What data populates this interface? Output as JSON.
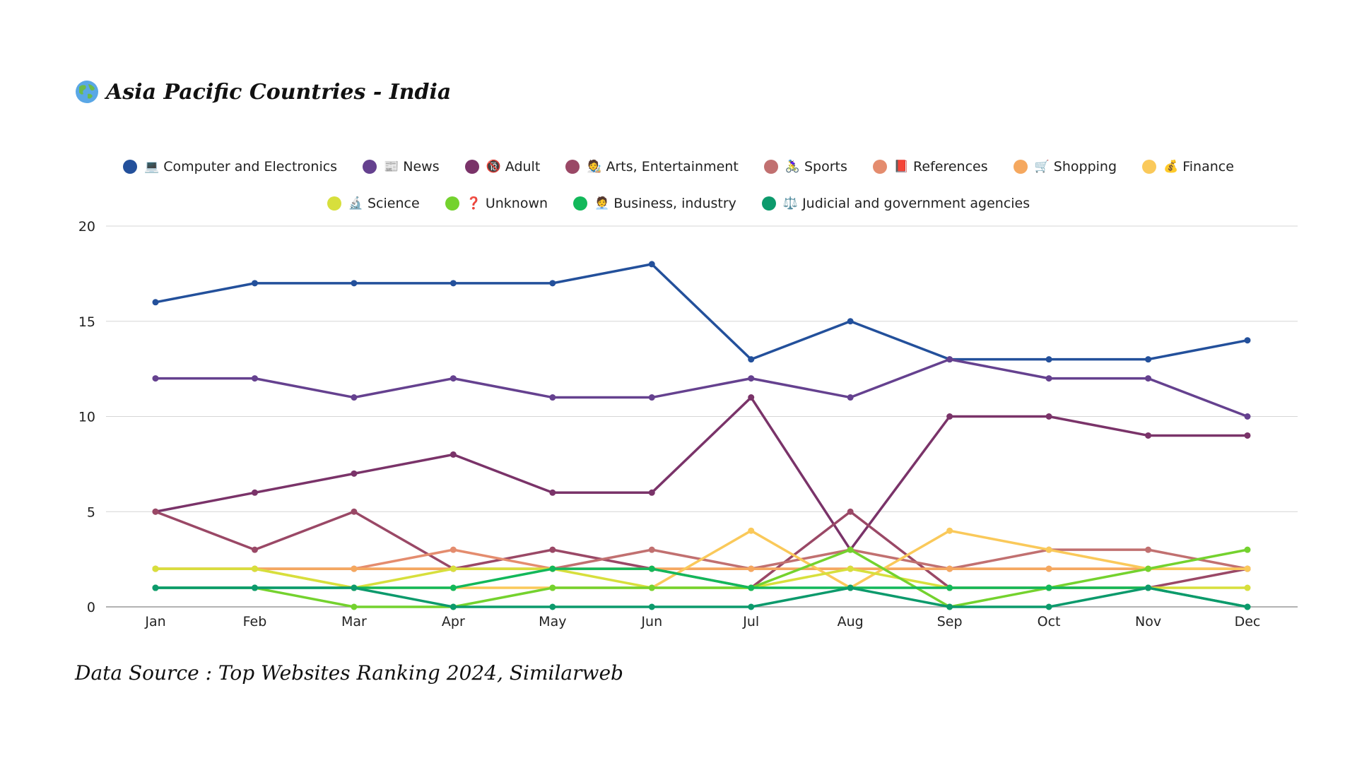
{
  "title": "Asia Pacific Countries - India",
  "source": "Data Source : Top Websites Ranking 2024, Similarweb",
  "chart_data": {
    "type": "line",
    "title": "Asia Pacific Countries - India",
    "categories": [
      "Jan",
      "Feb",
      "Mar",
      "Apr",
      "May",
      "Jun",
      "Jul",
      "Aug",
      "Sep",
      "Oct",
      "Nov",
      "Dec"
    ],
    "ylim": [
      0,
      20
    ],
    "yticks": [
      0,
      5,
      10,
      15,
      20
    ],
    "grid": true,
    "legend_position": "top",
    "series": [
      {
        "name": "Computer and Electronics",
        "icon": "💻",
        "color": "#23509b",
        "values": [
          16,
          17,
          17,
          17,
          17,
          18,
          13,
          15,
          13,
          13,
          13,
          14
        ]
      },
      {
        "name": "News",
        "icon": "📰",
        "color": "#65418f",
        "values": [
          12,
          12,
          11,
          12,
          11,
          11,
          12,
          11,
          13,
          12,
          12,
          10
        ]
      },
      {
        "name": "Adult",
        "icon": "🔞",
        "color": "#7a3369",
        "values": [
          5,
          6,
          7,
          8,
          6,
          6,
          11,
          3,
          10,
          10,
          9,
          9
        ]
      },
      {
        "name": "Arts, Entertainment",
        "icon": "🧑‍🎨",
        "color": "#9a4866",
        "values": [
          5,
          3,
          5,
          2,
          3,
          2,
          1,
          5,
          1,
          1,
          1,
          2
        ]
      },
      {
        "name": "Sports",
        "icon": "🚴‍♀️",
        "color": "#c17070",
        "values": [
          2,
          2,
          2,
          2,
          2,
          3,
          2,
          3,
          2,
          3,
          3,
          2
        ]
      },
      {
        "name": "References",
        "icon": "📕",
        "color": "#e48c6e",
        "values": [
          2,
          2,
          2,
          3,
          2,
          2,
          2,
          2,
          2,
          2,
          2,
          2
        ]
      },
      {
        "name": "Shopping",
        "icon": "🛒",
        "color": "#f5a85f",
        "values": [
          2,
          2,
          2,
          2,
          2,
          2,
          2,
          2,
          2,
          2,
          2,
          2
        ]
      },
      {
        "name": "Finance",
        "icon": "💰",
        "color": "#fac95a",
        "values": [
          2,
          2,
          1,
          1,
          1,
          1,
          4,
          1,
          4,
          3,
          2,
          2
        ]
      },
      {
        "name": "Science",
        "icon": "🔬",
        "color": "#d7df3c",
        "values": [
          2,
          2,
          1,
          2,
          2,
          1,
          1,
          2,
          1,
          1,
          1,
          1
        ]
      },
      {
        "name": "Unknown",
        "icon": "❓",
        "color": "#74d22e",
        "values": [
          1,
          1,
          0,
          0,
          1,
          1,
          1,
          3,
          0,
          1,
          2,
          3
        ]
      },
      {
        "name": "Business, industry",
        "icon": "🧑‍💼",
        "color": "#12b85a",
        "values": [
          1,
          1,
          1,
          1,
          2,
          2,
          1,
          1,
          1,
          1,
          1,
          0
        ]
      },
      {
        "name": "Judicial and government agencies",
        "icon": "⚖️",
        "color": "#0c9a6c",
        "values": [
          1,
          1,
          1,
          0,
          0,
          0,
          0,
          1,
          0,
          0,
          1,
          0
        ]
      }
    ]
  }
}
